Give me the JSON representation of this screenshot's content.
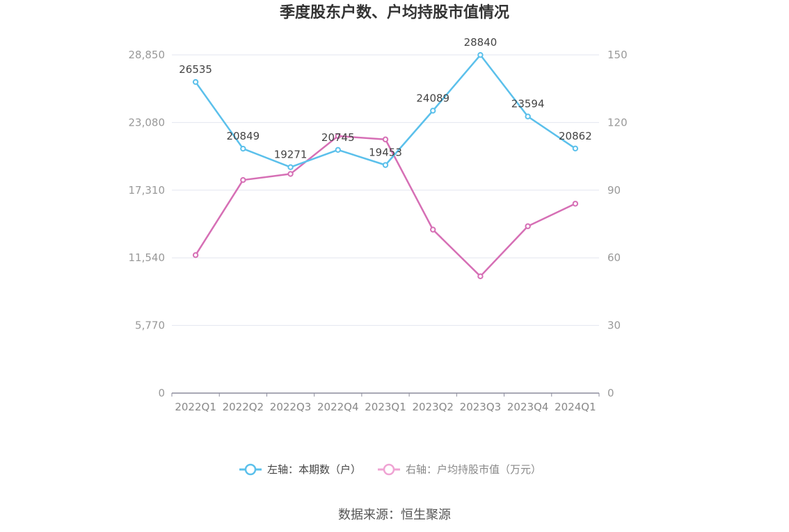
{
  "chart_data": {
    "type": "line",
    "title": "季度股东户数、户均持股市值情况",
    "categories": [
      "2022Q1",
      "2022Q2",
      "2022Q3",
      "2022Q4",
      "2023Q1",
      "2023Q2",
      "2023Q3",
      "2023Q4",
      "2024Q1"
    ],
    "y_left": {
      "ticks": [
        "0",
        "5,770",
        "11,540",
        "17,310",
        "23,080",
        "28,850"
      ],
      "range": [
        0,
        28850
      ]
    },
    "y_right": {
      "ticks": [
        "0",
        "30",
        "60",
        "90",
        "120",
        "150"
      ],
      "range": [
        0,
        150
      ]
    },
    "series": [
      {
        "name": "左轴：本期数（户）",
        "axis": "left",
        "color": "#5bc0eb",
        "values": [
          26535,
          20849,
          19271,
          20745,
          19453,
          24089,
          28840,
          23594,
          20862
        ],
        "labels": [
          "26535",
          "20849",
          "19271",
          "20745",
          "19453",
          "24089",
          "28840",
          "23594",
          "20862"
        ]
      },
      {
        "name": "右轴：户均持股市值（万元）",
        "axis": "right",
        "color": "#d66fb5",
        "values": [
          61.2,
          94.5,
          97.2,
          114,
          112.5,
          72.5,
          51.8,
          74,
          84
        ]
      }
    ],
    "grid": true,
    "legend_position": "bottom"
  },
  "source": "数据来源：恒生聚源"
}
